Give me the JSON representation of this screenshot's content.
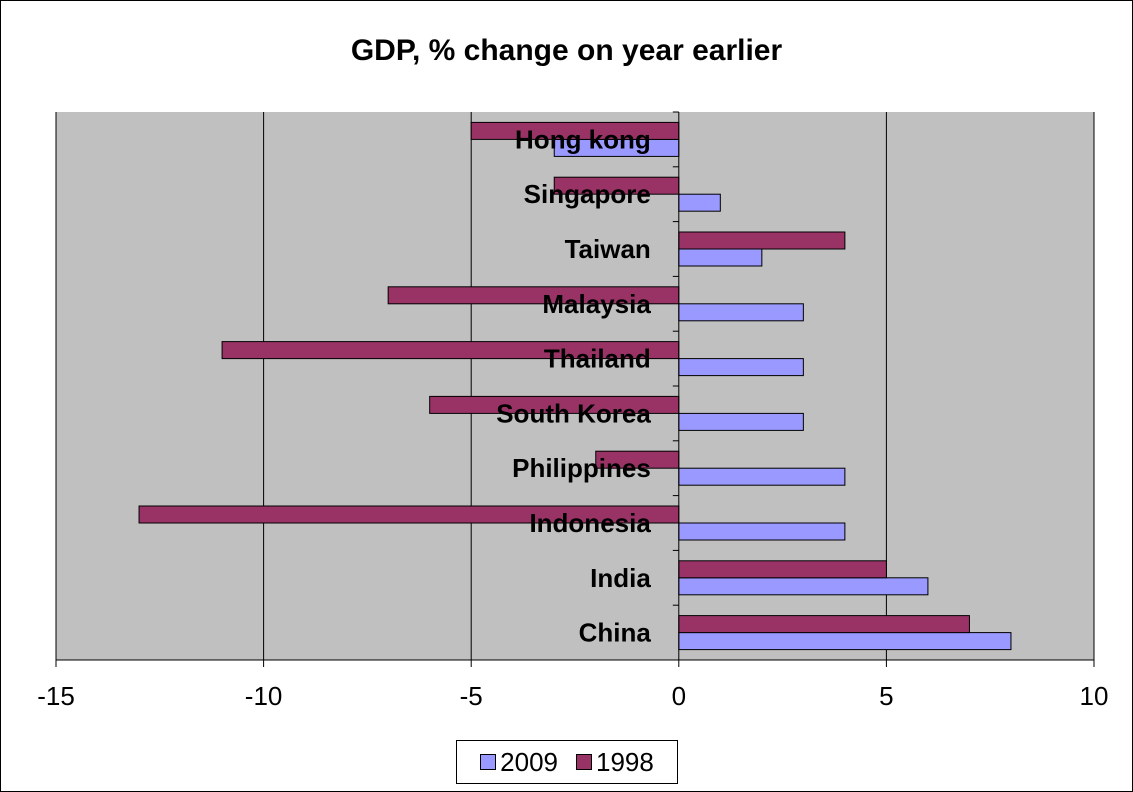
{
  "chart_data": {
    "type": "bar",
    "orientation": "horizontal",
    "title": "GDP, % change on year earlier",
    "categories": [
      "China",
      "India",
      "Indonesia",
      "Philippines",
      "South Korea",
      "Thailand",
      "Malaysia",
      "Taiwan",
      "Singapore",
      "Hong kong"
    ],
    "series": [
      {
        "name": "2009",
        "color": "#9999ff",
        "values": [
          8,
          6,
          4,
          4,
          3,
          3,
          3,
          2,
          1,
          -3
        ]
      },
      {
        "name": "1998",
        "color": "#993366",
        "values": [
          7,
          5,
          -13,
          -2,
          -6,
          -11,
          -7,
          4,
          -3,
          -5
        ]
      }
    ],
    "xlim": [
      -15,
      10
    ],
    "xticks": [
      "-15",
      "-10",
      "-5",
      "0",
      "5",
      "10"
    ],
    "xtick_values": [
      -15,
      -10,
      -5,
      0,
      5,
      10
    ],
    "plot_background": "#c0c0c0",
    "grid": true,
    "legend_position": "bottom"
  }
}
